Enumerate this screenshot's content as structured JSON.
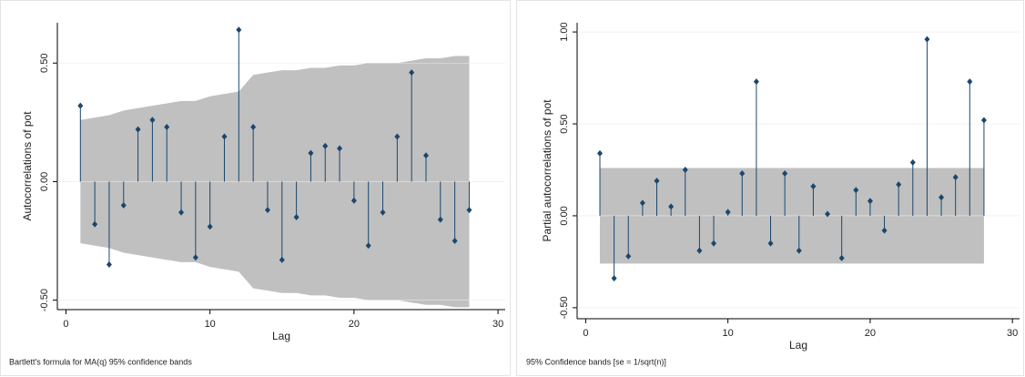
{
  "chart_data": [
    {
      "type": "stem",
      "ylabel": "Autocorrelations of pot",
      "xlabel": "Lag",
      "note": "Bartlett's formula for MA(q) 95% confidence bands",
      "color": "#1a476f",
      "band_color": "#c0c0c0",
      "x": [
        1,
        2,
        3,
        4,
        5,
        6,
        7,
        8,
        9,
        10,
        11,
        12,
        13,
        14,
        15,
        16,
        17,
        18,
        19,
        20,
        21,
        22,
        23,
        24,
        25,
        26,
        27,
        28
      ],
      "values": [
        0.32,
        -0.18,
        -0.35,
        -0.1,
        0.22,
        0.26,
        0.23,
        -0.13,
        -0.32,
        -0.19,
        0.19,
        0.64,
        0.23,
        -0.12,
        -0.33,
        -0.15,
        0.12,
        0.15,
        0.14,
        -0.08,
        -0.27,
        -0.13,
        0.19,
        0.46,
        0.11,
        -0.16,
        -0.25,
        -0.12
      ],
      "band_upper": [
        0.26,
        0.27,
        0.28,
        0.3,
        0.31,
        0.32,
        0.33,
        0.34,
        0.34,
        0.36,
        0.37,
        0.38,
        0.45,
        0.46,
        0.47,
        0.47,
        0.48,
        0.48,
        0.49,
        0.49,
        0.5,
        0.5,
        0.5,
        0.51,
        0.52,
        0.52,
        0.53,
        0.53
      ],
      "band_lower": [
        -0.26,
        -0.27,
        -0.28,
        -0.3,
        -0.31,
        -0.32,
        -0.33,
        -0.34,
        -0.34,
        -0.36,
        -0.37,
        -0.38,
        -0.45,
        -0.46,
        -0.47,
        -0.47,
        -0.48,
        -0.48,
        -0.49,
        -0.49,
        -0.5,
        -0.5,
        -0.5,
        -0.51,
        -0.52,
        -0.52,
        -0.53,
        -0.53
      ],
      "xlim": [
        -0.6,
        30.5
      ],
      "ylim": [
        -0.54,
        0.67
      ],
      "xticks": [
        0,
        10,
        20,
        30
      ],
      "yticks": [
        {
          "value": -0.5,
          "label": "-0.50"
        },
        {
          "value": 0,
          "label": "0.00"
        },
        {
          "value": 0.5,
          "label": "0.50"
        }
      ]
    },
    {
      "type": "stem",
      "ylabel": "Partial autocorrelations of pot",
      "xlabel": "Lag",
      "note": "95% Confidence bands [se = 1/sqrt(n)]",
      "color": "#1a476f",
      "band_color": "#c0c0c0",
      "x": [
        1,
        2,
        3,
        4,
        5,
        6,
        7,
        8,
        9,
        10,
        11,
        12,
        13,
        14,
        15,
        16,
        17,
        18,
        19,
        20,
        21,
        22,
        23,
        24,
        25,
        26,
        27,
        28
      ],
      "values": [
        0.34,
        -0.34,
        -0.22,
        0.07,
        0.19,
        0.05,
        0.25,
        -0.19,
        -0.15,
        0.02,
        0.23,
        0.73,
        -0.15,
        0.23,
        -0.19,
        0.16,
        0.01,
        -0.23,
        0.14,
        0.08,
        -0.08,
        0.17,
        0.29,
        0.96,
        0.1,
        0.21,
        0.73,
        0.52
      ],
      "band_upper": 0.26,
      "band_lower": -0.26,
      "xlim": [
        -0.6,
        30.5
      ],
      "ylim": [
        -0.56,
        1.05
      ],
      "xticks": [
        0,
        10,
        20,
        30
      ],
      "yticks": [
        {
          "value": -0.5,
          "label": "-0.50"
        },
        {
          "value": 0,
          "label": "0.00"
        },
        {
          "value": 0.5,
          "label": "0.50"
        },
        {
          "value": 1,
          "label": "1.00"
        }
      ]
    }
  ]
}
